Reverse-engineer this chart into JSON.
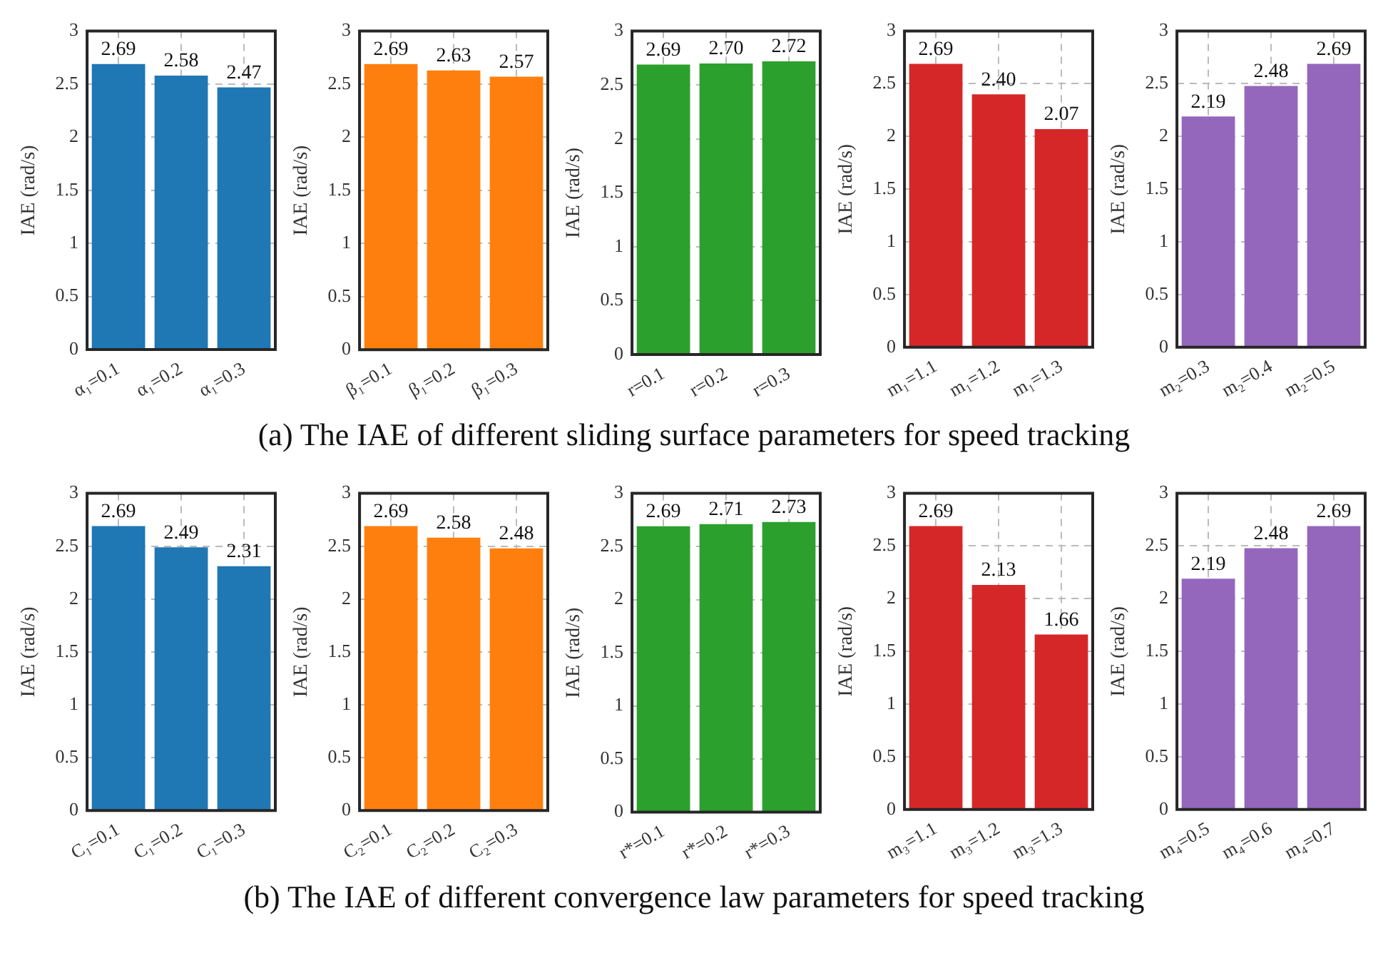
{
  "chart_data": [
    {
      "type": "bar",
      "ylabel": "IAE (rad/s)",
      "categories": [
        "α₁=0.1",
        "α₁=0.2",
        "α₁=0.3"
      ],
      "values": [
        2.69,
        2.58,
        2.47
      ],
      "value_labels": [
        "2.69",
        "2.58",
        "2.47"
      ],
      "color": "#1f77b4",
      "ylim": [
        0,
        3
      ],
      "yticks": [
        0,
        0.5,
        1,
        1.5,
        2,
        2.5,
        3
      ],
      "grid": true,
      "legend": false
    },
    {
      "type": "bar",
      "ylabel": "IAE (rad/s)",
      "categories": [
        "β₁=0.1",
        "β₁=0.2",
        "β₁=0.3"
      ],
      "values": [
        2.69,
        2.63,
        2.57
      ],
      "value_labels": [
        "2.69",
        "2.63",
        "2.57"
      ],
      "color": "#ff7f0e",
      "ylim": [
        0,
        3
      ],
      "yticks": [
        0,
        0.5,
        1,
        1.5,
        2,
        2.5,
        3
      ],
      "grid": true,
      "legend": false
    },
    {
      "type": "bar",
      "ylabel": "IAE (rad/s)",
      "categories": [
        "r=0.1",
        "r=0.2",
        "r=0.3"
      ],
      "values": [
        2.69,
        2.7,
        2.72
      ],
      "value_labels": [
        "2.69",
        "2.70",
        "2.72"
      ],
      "color": "#2ca02c",
      "ylim": [
        0,
        3
      ],
      "yticks": [
        0,
        0.5,
        1,
        1.5,
        2,
        2.5,
        3
      ],
      "grid": true,
      "legend": false
    },
    {
      "type": "bar",
      "ylabel": "IAE (rad/s)",
      "categories": [
        "m₁=1.1",
        "m₁=1.2",
        "m₁=1.3"
      ],
      "values": [
        2.69,
        2.4,
        2.07
      ],
      "value_labels": [
        "2.69",
        "2.40",
        "2.07"
      ],
      "color": "#d62728",
      "ylim": [
        0,
        3
      ],
      "yticks": [
        0,
        0.5,
        1,
        1.5,
        2,
        2.5,
        3
      ],
      "grid": true,
      "legend": false
    },
    {
      "type": "bar",
      "ylabel": "IAE (rad/s)",
      "categories": [
        "m₂=0.3",
        "m₂=0.4",
        "m₂=0.5"
      ],
      "values": [
        2.19,
        2.48,
        2.69
      ],
      "value_labels": [
        "2.19",
        "2.48",
        "2.69"
      ],
      "color": "#9467bd",
      "ylim": [
        0,
        3
      ],
      "yticks": [
        0,
        0.5,
        1,
        1.5,
        2,
        2.5,
        3
      ],
      "grid": true,
      "legend": false
    },
    {
      "type": "other",
      "title": "(a) The IAE of different sliding surface parameters for speed tracking"
    },
    {
      "type": "bar",
      "ylabel": "IAE (rad/s)",
      "categories": [
        "C₁=0.1",
        "C₁=0.2",
        "C₁=0.3"
      ],
      "values": [
        2.69,
        2.49,
        2.31
      ],
      "value_labels": [
        "2.69",
        "2.49",
        "2.31"
      ],
      "color": "#1f77b4",
      "ylim": [
        0,
        3
      ],
      "yticks": [
        0,
        0.5,
        1,
        1.5,
        2,
        2.5,
        3
      ],
      "grid": true,
      "legend": false
    },
    {
      "type": "bar",
      "ylabel": "IAE (rad/s)",
      "categories": [
        "C₂=0.1",
        "C₂=0.2",
        "C₂=0.3"
      ],
      "values": [
        2.69,
        2.58,
        2.48
      ],
      "value_labels": [
        "2.69",
        "2.58",
        "2.48"
      ],
      "color": "#ff7f0e",
      "ylim": [
        0,
        3
      ],
      "yticks": [
        0,
        0.5,
        1,
        1.5,
        2,
        2.5,
        3
      ],
      "grid": true,
      "legend": false
    },
    {
      "type": "bar",
      "ylabel": "IAE (rad/s)",
      "categories": [
        "r*=0.1",
        "r*=0.2",
        "r*=0.3"
      ],
      "values": [
        2.69,
        2.71,
        2.73
      ],
      "value_labels": [
        "2.69",
        "2.71",
        "2.73"
      ],
      "color": "#2ca02c",
      "ylim": [
        0,
        3
      ],
      "yticks": [
        0,
        0.5,
        1,
        1.5,
        2,
        2.5,
        3
      ],
      "grid": true,
      "legend": false
    },
    {
      "type": "bar",
      "ylabel": "IAE (rad/s)",
      "categories": [
        "m₃=1.1",
        "m₃=1.2",
        "m₃=1.3"
      ],
      "values": [
        2.69,
        2.13,
        1.66
      ],
      "value_labels": [
        "2.69",
        "2.13",
        "1.66"
      ],
      "color": "#d62728",
      "ylim": [
        0,
        3
      ],
      "yticks": [
        0,
        0.5,
        1,
        1.5,
        2,
        2.5,
        3
      ],
      "grid": true,
      "legend": false
    },
    {
      "type": "bar",
      "ylabel": "IAE (rad/s)",
      "categories": [
        "m₄=0.5",
        "m₄=0.6",
        "m₄=0.7"
      ],
      "values": [
        2.19,
        2.48,
        2.69
      ],
      "value_labels": [
        "2.19",
        "2.48",
        "2.69"
      ],
      "color": "#9467bd",
      "ylim": [
        0,
        3
      ],
      "yticks": [
        0,
        0.5,
        1,
        1.5,
        2,
        2.5,
        3
      ],
      "grid": true,
      "legend": false
    },
    {
      "type": "other",
      "title": "(b) The IAE of different convergence law parameters for speed tracking"
    }
  ]
}
